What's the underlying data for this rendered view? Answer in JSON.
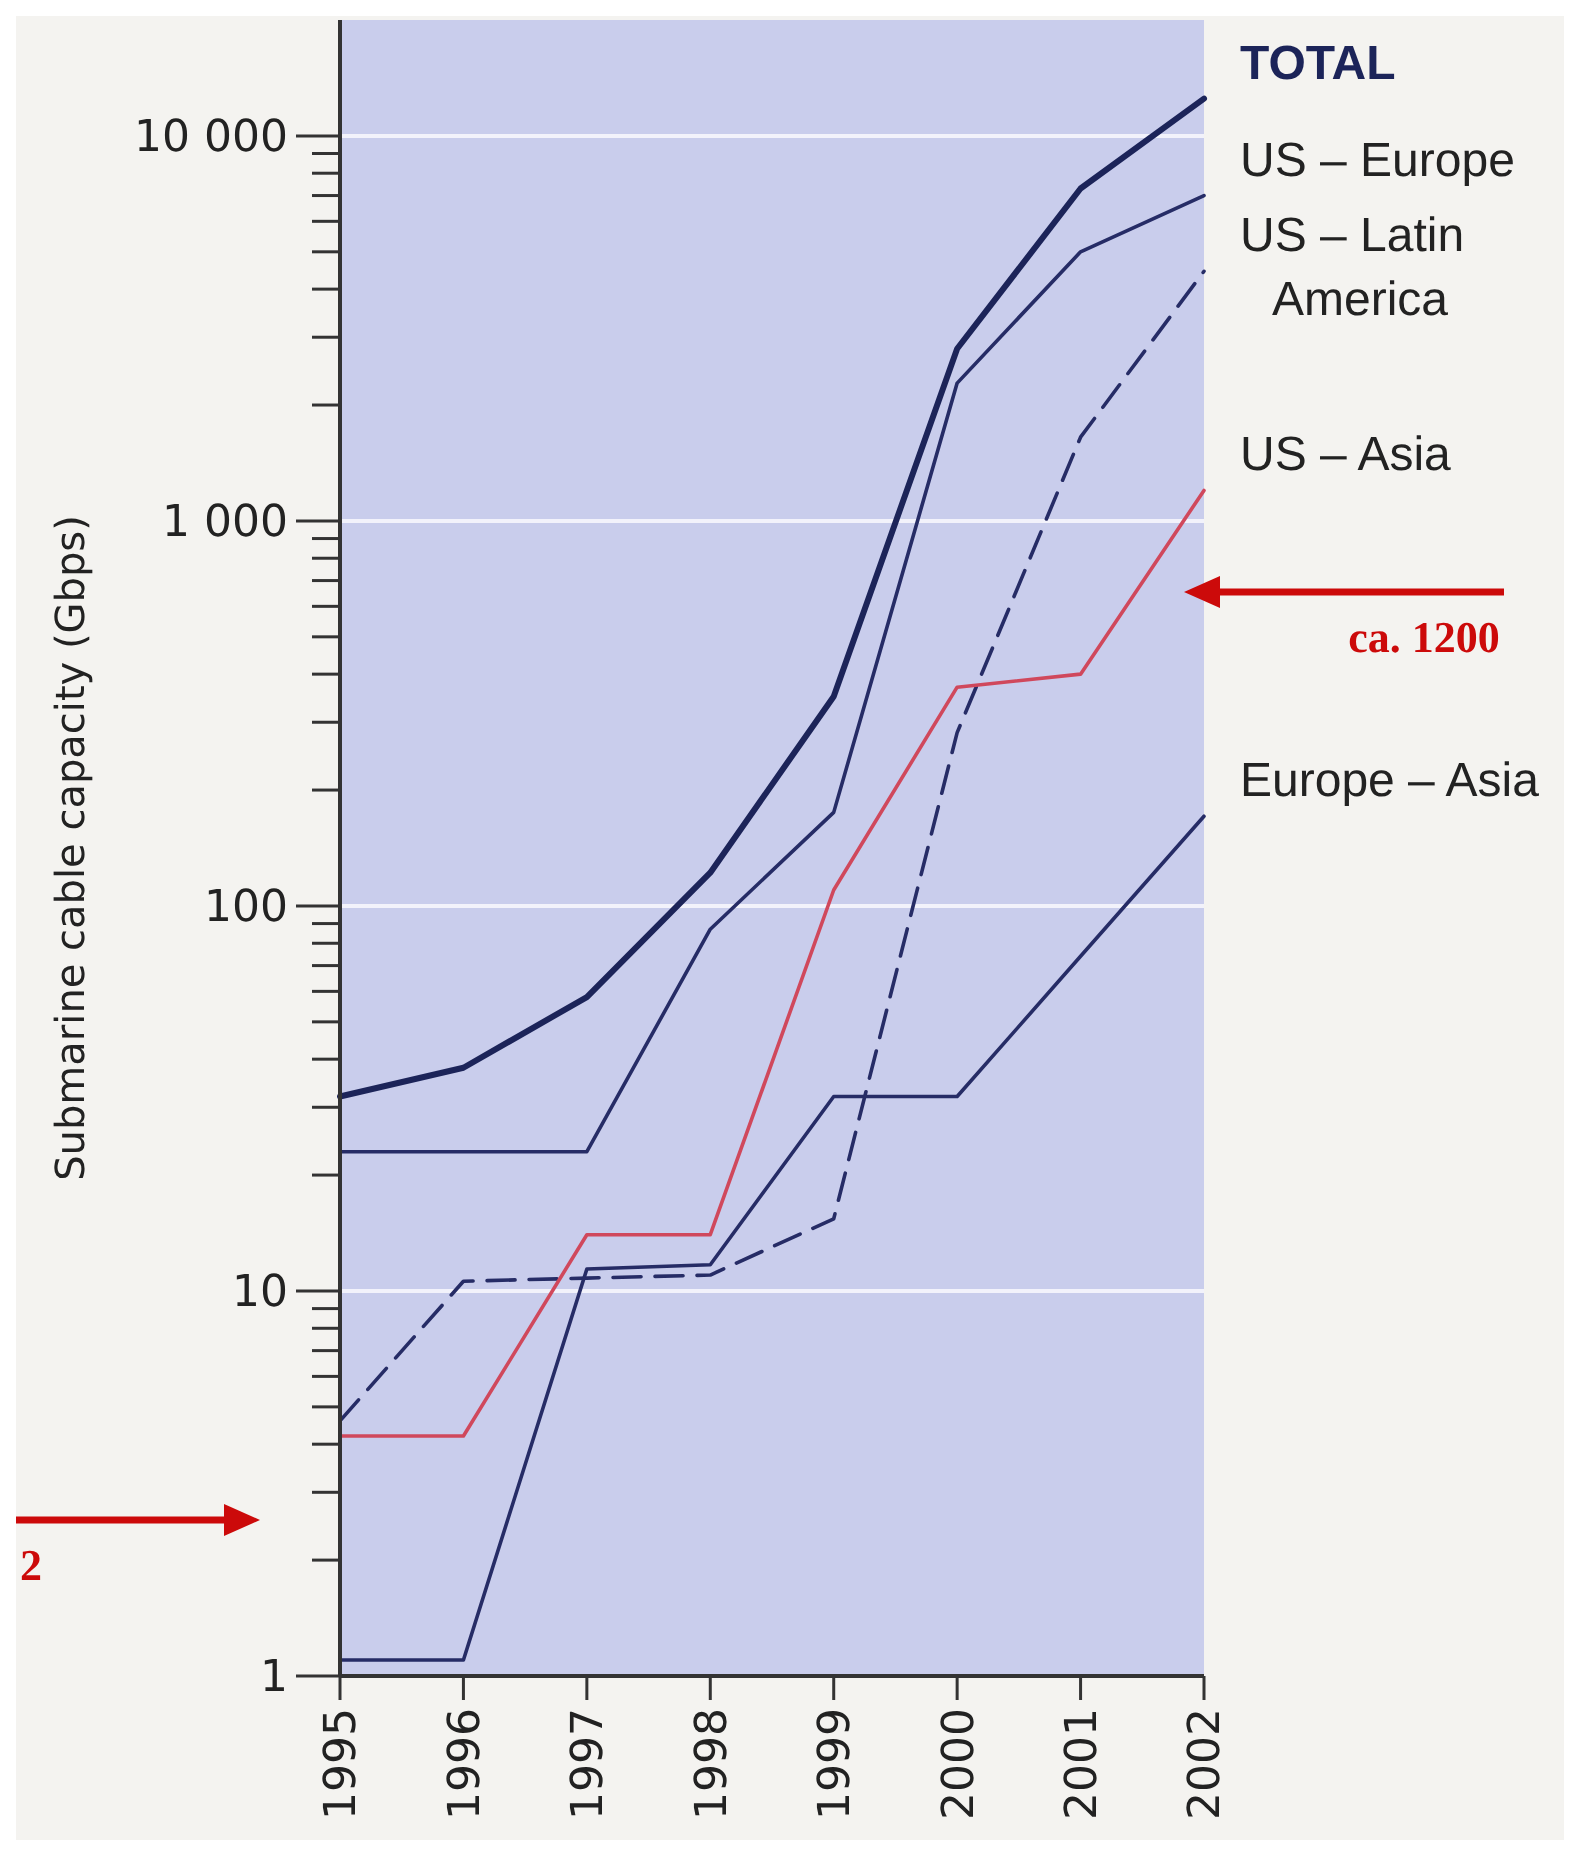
{
  "chart_data": {
    "type": "line",
    "ylabel": "Submarine cable capacity (Gbps)",
    "x": [
      1995,
      1996,
      1997,
      1998,
      1999,
      2000,
      2001,
      2002
    ],
    "xlim": [
      1995,
      2002
    ],
    "xticks": [
      1995,
      1996,
      1997,
      1998,
      1999,
      2000,
      2001,
      2002
    ],
    "ylim": [
      1,
      20000
    ],
    "log": "y",
    "grid": "y",
    "marker": "none",
    "yticks": [
      1,
      {
        "value": 2,
        "label": null
      },
      {
        "value": 3,
        "label": null
      },
      {
        "value": 4,
        "label": null
      },
      {
        "value": 5,
        "label": null
      },
      {
        "value": 6,
        "label": null
      },
      {
        "value": 7,
        "label": null
      },
      {
        "value": 8,
        "label": null
      },
      {
        "value": 9,
        "label": null
      },
      10,
      {
        "value": 20,
        "label": null
      },
      {
        "value": 30,
        "label": null
      },
      {
        "value": 40,
        "label": null
      },
      {
        "value": 50,
        "label": null
      },
      {
        "value": 60,
        "label": null
      },
      {
        "value": 70,
        "label": null
      },
      {
        "value": 80,
        "label": null
      },
      {
        "value": 90,
        "label": null
      },
      100,
      {
        "value": 200,
        "label": null
      },
      {
        "value": 300,
        "label": null
      },
      {
        "value": 400,
        "label": null
      },
      {
        "value": 500,
        "label": null
      },
      {
        "value": 600,
        "label": null
      },
      {
        "value": 700,
        "label": null
      },
      {
        "value": 800,
        "label": null
      },
      {
        "value": 900,
        "label": null
      },
      {
        "value": 1000,
        "label": "1 000"
      },
      {
        "value": 2000,
        "label": null
      },
      {
        "value": 3000,
        "label": null
      },
      {
        "value": 4000,
        "label": null
      },
      {
        "value": 5000,
        "label": null
      },
      {
        "value": 6000,
        "label": null
      },
      {
        "value": 7000,
        "label": null
      },
      {
        "value": 8000,
        "label": null
      },
      {
        "value": 9000,
        "label": null
      },
      {
        "value": 10000,
        "label": "10 000"
      }
    ],
    "series": [
      {
        "name": "TOTAL",
        "color": "#1c2459",
        "values": [
          32,
          38,
          58,
          122,
          350,
          2800,
          7300,
          12500
        ]
      },
      {
        "name": "US – Europe",
        "color": "#262c66",
        "values": [
          23,
          23,
          23,
          87,
          175,
          2280,
          5000,
          7000
        ]
      },
      {
        "name": "US – Latin America",
        "color": "#262c66",
        "line_style": "dashed",
        "values": [
          4.6,
          10.6,
          10.8,
          11,
          15.4,
          282,
          1650,
          4450
        ]
      },
      {
        "name": "US – Asia",
        "color": "#d0485c",
        "values": [
          4.2,
          4.2,
          14,
          14,
          110,
          370,
          400,
          1200
        ]
      },
      {
        "name": "Europe – Asia",
        "color": "#262c66",
        "values": [
          1.1,
          1.1,
          11.4,
          11.7,
          32,
          32,
          74,
          171
        ]
      }
    ],
    "annotations": [
      "ca. 1200",
      "2"
    ]
  }
}
